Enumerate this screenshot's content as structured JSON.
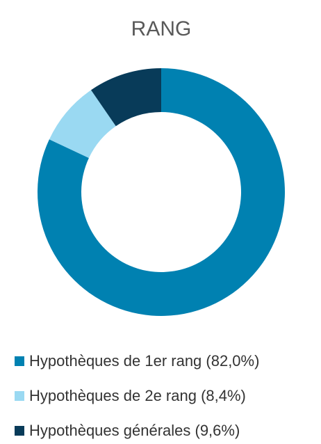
{
  "chart_data": {
    "type": "donut",
    "title": "RANG",
    "series": [
      {
        "name": "Hypothèques de 1er rang (82,0%)",
        "color": "#0081b1",
        "values": [
          82.0
        ]
      },
      {
        "name": "Hypothèques de 2e rang (8,4%)",
        "color": "#9ad9f2",
        "values": [
          8.4
        ]
      },
      {
        "name": "Hypothèques générales (9,6%)",
        "color": "#083b59",
        "values": [
          9.6
        ]
      }
    ]
  }
}
